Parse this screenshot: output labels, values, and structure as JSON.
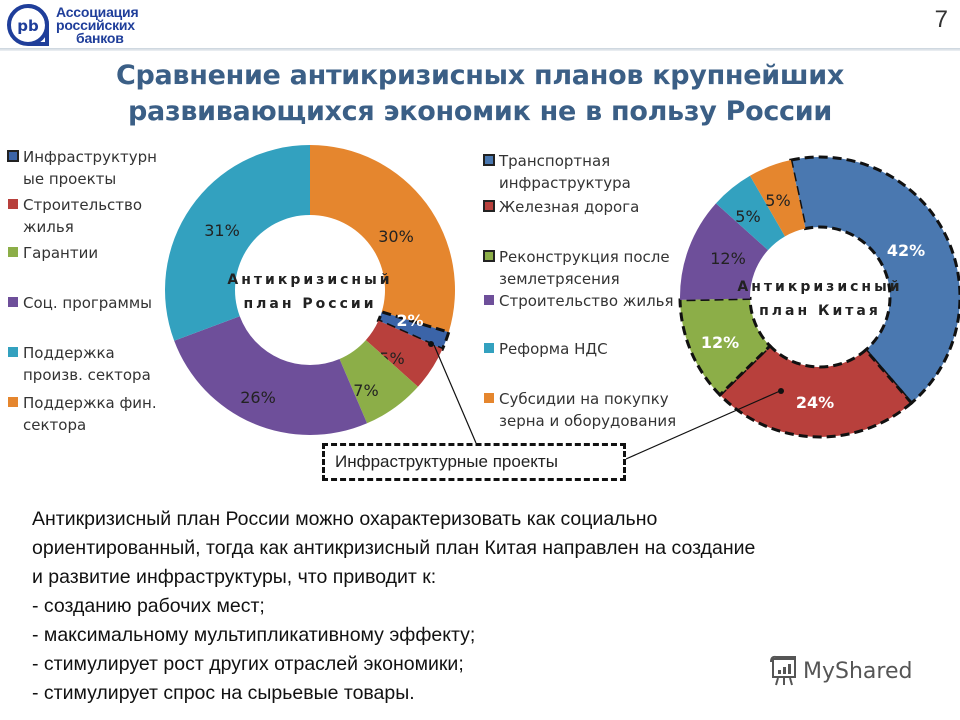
{
  "header": {
    "logo_lines": [
      "Ассоциация",
      "российских",
      "банков"
    ],
    "logo_mark": "pb",
    "page_number": "7"
  },
  "title": {
    "line1": "Сравнение антикризисных планов крупнейших",
    "line2": "развивающихся экономик не в пользу России"
  },
  "colors": {
    "title": "#3b5f86",
    "logo": "#1f3e9a",
    "blue": "#4a78b0",
    "red": "#b8403c",
    "green": "#8cae48",
    "purple": "#6e4f9a",
    "teal": "#33a1bf",
    "orange": "#e5862e"
  },
  "russia_legend": [
    {
      "label": "Инфраструктурн\nые проекты",
      "color": "#3b64a8",
      "framed": true
    },
    {
      "label": "Строительство\nжилья",
      "color": "#b8403c",
      "framed": false
    },
    {
      "label": "Гарантии",
      "color": "#8cae48",
      "framed": false
    },
    {
      "label": "Соц. программы",
      "color": "#6e4f9a",
      "framed": false
    },
    {
      "label": "Поддержка\nпроизв. сектора",
      "color": "#33a1bf",
      "framed": false
    },
    {
      "label": "Поддержка фин.\nсектора",
      "color": "#e5862e",
      "framed": false
    }
  ],
  "china_legend": [
    {
      "label": "Транспортная\nинфраструктура",
      "color": "#4a78b0",
      "framed": true
    },
    {
      "label": "Железная дорога",
      "color": "#b8403c",
      "framed": true
    },
    {
      "label": "Реконструкция после\nземлетрясения",
      "color": "#8cae48",
      "framed": true
    },
    {
      "label": "Строительство жилья",
      "color": "#6e4f9a",
      "framed": false
    },
    {
      "label": "Реформа НДС",
      "color": "#33a1bf",
      "framed": false
    },
    {
      "label": "Субсидии на покупку\nзерна и оборудования",
      "color": "#e5862e",
      "framed": false
    }
  ],
  "callout": {
    "label": "Инфраструктурные проекты"
  },
  "body": {
    "lines": [
      "Антикризисный план России можно охарактеризовать как социально",
      "ориентированный, тогда как антикризисный план Китая направлен на создание",
      "и развитие инфраструктуры, что приводит к:",
      "- созданию рабочих мест;",
      "- максимальному мультипликативному эффекту;",
      "- стимулирует рост других отраслей экономики;",
      "- стимулирует спрос на сырьевые товары."
    ]
  },
  "watermark": {
    "label": "MyShared"
  },
  "chart_data": [
    {
      "type": "pie",
      "variant": "donut",
      "title": "Антикризисный план России",
      "center_label": [
        "Антикризисный",
        "план России"
      ],
      "categories": [
        "Поддержка фин. сектора",
        "Инфраструктурные проекты",
        "Строительство жилья",
        "Гарантии",
        "Соц. программы",
        "Поддержка произв. сектора"
      ],
      "values": [
        30,
        2,
        5,
        7,
        26,
        31
      ],
      "labels": [
        "30%",
        "2%",
        "5%",
        "7%",
        "26%",
        "31%"
      ],
      "colors": [
        "#e5862e",
        "#3b64a8",
        "#b8403c",
        "#8cae48",
        "#6e4f9a",
        "#33a1bf"
      ],
      "highlighted": [
        "Инфраструктурные проекты"
      ],
      "legend_position": "left"
    },
    {
      "type": "pie",
      "variant": "donut",
      "title": "Антикризисный план Китая",
      "center_label": [
        "Антикризисный",
        "план Китая"
      ],
      "categories": [
        "Транспортная инфраструктура",
        "Железная дорога",
        "Реконструкция после землетрясения",
        "Строительство жилья",
        "Реформа НДС",
        "Субсидии на покупку зерна и оборудования"
      ],
      "values": [
        42,
        24,
        12,
        12,
        5,
        5
      ],
      "labels": [
        "42%",
        "24%",
        "12%",
        "12%",
        "5%",
        "5%"
      ],
      "colors": [
        "#4a78b0",
        "#b8403c",
        "#8cae48",
        "#6e4f9a",
        "#33a1bf",
        "#e5862e"
      ],
      "highlighted": [
        "Транспортная инфраструктура",
        "Железная дорога",
        "Реконструкция после землетрясения"
      ],
      "legend_position": "left"
    }
  ]
}
